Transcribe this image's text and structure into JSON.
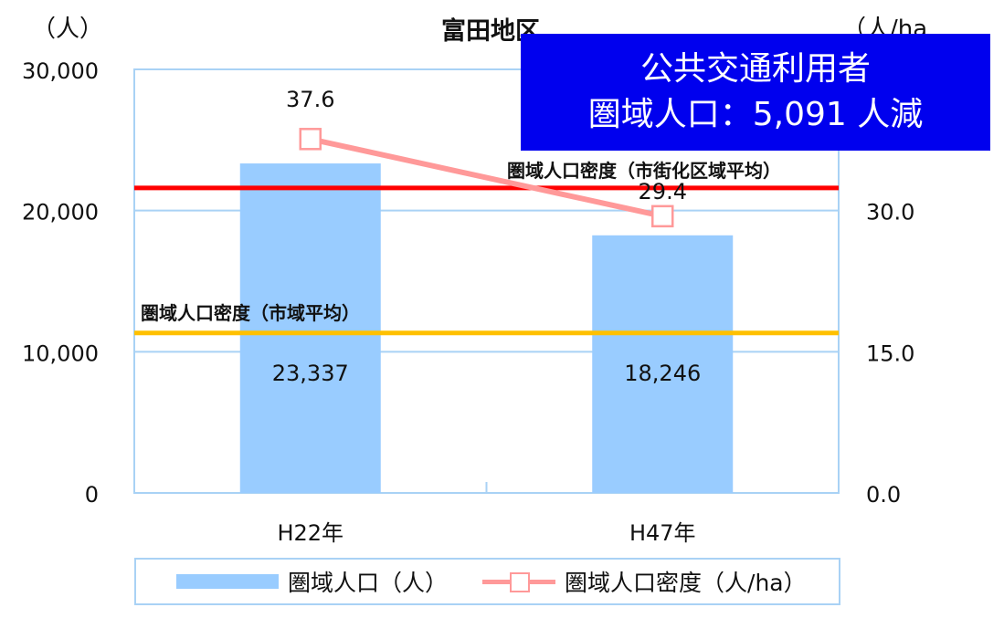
{
  "chart_data": {
    "type": "bar",
    "title": "富田地区",
    "y_left_unit": "（人）",
    "y_right_unit": "（人/ha",
    "categories": [
      "H22年",
      "H47年"
    ],
    "y_left_ticks": [
      "0",
      "10,000",
      "20,000",
      "30,000"
    ],
    "y_right_ticks": [
      "0.0",
      "15.0",
      "30.0"
    ],
    "ylim_left": [
      0,
      30000
    ],
    "ylim_right": [
      0,
      45
    ],
    "series": [
      {
        "name": "圏域人口（人）",
        "type": "bar",
        "axis": "left",
        "color": "#99ccff",
        "values": [
          23337,
          18246
        ],
        "labels": [
          "23,337",
          "18,246"
        ]
      },
      {
        "name": "圏域人口密度（人/ha）",
        "type": "line",
        "axis": "right",
        "color": "#ff9999",
        "values": [
          37.6,
          29.4
        ],
        "labels": [
          "37.6",
          "29.4"
        ]
      }
    ],
    "reference_lines": [
      {
        "label": "圏域人口密度（市街化区域平均）",
        "color": "#ff0000",
        "value": 32.4
      },
      {
        "label": "圏域人口密度（市域平均）",
        "color": "#ffc000",
        "value": 17.0
      }
    ],
    "grid": true,
    "legend": "bottom"
  },
  "callout": {
    "line1": "公共交通利用者",
    "line2": "圏域人口：5,091 人減"
  }
}
